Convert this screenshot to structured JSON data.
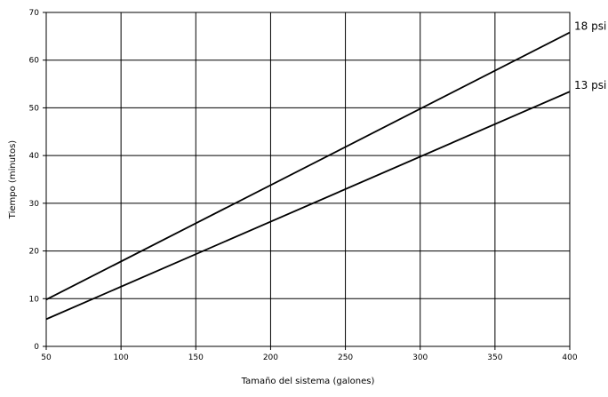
{
  "chart_data": {
    "type": "line",
    "xlabel": "Tamaño del sistema (galones)",
    "ylabel": "Tiempo (minutos)",
    "xlim": [
      50,
      400
    ],
    "ylim": [
      0,
      70
    ],
    "xticks": [
      "50",
      "100",
      "150",
      "200",
      "250",
      "300",
      "350",
      "400"
    ],
    "yticks": [
      "0",
      "10",
      "20",
      "30",
      "40",
      "50",
      "60",
      "70"
    ],
    "grid": true,
    "series": [
      {
        "name": "18 psi",
        "x": [
          50,
          400
        ],
        "y": [
          9.8,
          65.8
        ]
      },
      {
        "name": "13 psi",
        "x": [
          50,
          400
        ],
        "y": [
          5.7,
          53.4
        ]
      }
    ]
  }
}
